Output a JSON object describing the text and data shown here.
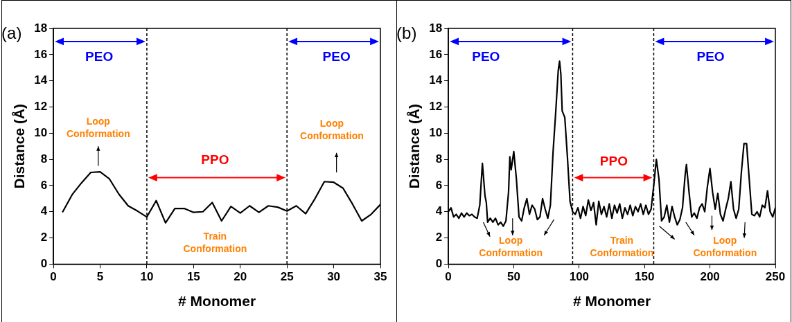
{
  "chart_data": [
    {
      "type": "line",
      "title": "(a)",
      "xlabel": "# Monomer",
      "ylabel": "Distance (Å)",
      "xlim": [
        0,
        35
      ],
      "xticks": [
        0,
        5,
        10,
        15,
        20,
        25,
        30,
        35
      ],
      "ylim": [
        0,
        18
      ],
      "yticks": [
        0,
        2,
        4,
        6,
        8,
        10,
        12,
        14,
        16,
        18
      ],
      "grid": false,
      "legend": false,
      "marker": "none",
      "line_style": "solid",
      "series": [
        {
          "color": "#000000",
          "x": [
            1,
            2,
            3,
            4,
            5,
            6,
            7,
            8,
            9,
            10,
            11,
            12,
            13,
            14,
            15,
            16,
            17,
            18,
            19,
            20,
            21,
            22,
            23,
            24,
            25,
            26,
            27,
            28,
            29,
            30,
            31,
            32,
            33,
            34,
            35
          ],
          "values": [
            4.0,
            5.3,
            6.2,
            7.0,
            7.05,
            6.5,
            5.35,
            4.45,
            4.05,
            3.6,
            4.85,
            3.15,
            4.25,
            4.25,
            3.95,
            4.0,
            4.7,
            3.3,
            4.4,
            3.9,
            4.45,
            3.95,
            4.45,
            4.35,
            4.05,
            4.45,
            3.85,
            5.0,
            6.3,
            6.25,
            5.8,
            4.6,
            3.3,
            3.8,
            4.55
          ]
        }
      ],
      "ref_lines": [
        {
          "axis": "x",
          "value": 10,
          "color": "#000000",
          "line_style": "dashed"
        },
        {
          "axis": "x",
          "value": 25,
          "color": "#000000",
          "line_style": "dashed"
        }
      ],
      "annotations": [
        "PEO",
        "PEO",
        "PPO",
        "Loop Conformation",
        "Loop Conformation",
        "Train Conformation"
      ]
    },
    {
      "type": "line",
      "title": "(b)",
      "xlabel": "# Monomer",
      "ylabel": "Distance (Å)",
      "xlim": [
        0,
        250
      ],
      "xticks": [
        0,
        50,
        100,
        150,
        200,
        250
      ],
      "ylim": [
        0,
        18
      ],
      "yticks": [
        0,
        2,
        4,
        6,
        8,
        10,
        12,
        14,
        16,
        18
      ],
      "grid": false,
      "legend": false,
      "marker": "none",
      "line_style": "solid",
      "series": [
        {
          "color": "#000000",
          "x": [
            0,
            2,
            4,
            6,
            8,
            10,
            12,
            14,
            16,
            18,
            20,
            22,
            24,
            26,
            28,
            29,
            30,
            32,
            34,
            36,
            38,
            40,
            42,
            44,
            46,
            47,
            48,
            50,
            52,
            54,
            56,
            58,
            60,
            62,
            64,
            66,
            68,
            70,
            72,
            74,
            76,
            78,
            80,
            82,
            84,
            85,
            86,
            87,
            89,
            91,
            93,
            95,
            97,
            99,
            101,
            103,
            105,
            107,
            109,
            111,
            113,
            115,
            117,
            119,
            121,
            123,
            125,
            127,
            129,
            131,
            133,
            135,
            137,
            139,
            141,
            143,
            145,
            147,
            149,
            151,
            153,
            155,
            157,
            159,
            161,
            163,
            165,
            167,
            169,
            171,
            173,
            175,
            177,
            179,
            181,
            182,
            184,
            186,
            188,
            190,
            192,
            194,
            196,
            198,
            200,
            202,
            204,
            206,
            208,
            210,
            212,
            214,
            216,
            218,
            220,
            222,
            224,
            226,
            228,
            230,
            232,
            234,
            236,
            238,
            240,
            242,
            244,
            246,
            248,
            250
          ],
          "values": [
            4.0,
            4.3,
            3.6,
            3.8,
            3.5,
            3.9,
            3.6,
            3.9,
            3.7,
            3.8,
            3.6,
            3.5,
            4.5,
            7.7,
            5.2,
            4.7,
            3.2,
            3.5,
            3.2,
            3.5,
            3.0,
            3.2,
            2.9,
            3.3,
            5.5,
            8.2,
            7.2,
            8.6,
            6.5,
            3.6,
            3.3,
            4.3,
            5.0,
            3.8,
            4.5,
            4.2,
            3.4,
            3.6,
            5.0,
            4.2,
            3.5,
            4.5,
            8.5,
            11.5,
            14.8,
            15.5,
            14.5,
            11.7,
            11.2,
            8.2,
            4.8,
            4.0,
            3.8,
            4.3,
            3.5,
            4.4,
            3.7,
            4.9,
            4.1,
            4.7,
            3.0,
            4.8,
            3.8,
            4.4,
            3.6,
            4.6,
            3.5,
            4.5,
            3.9,
            4.6,
            3.5,
            4.3,
            3.8,
            4.5,
            3.7,
            4.4,
            4.0,
            4.6,
            3.8,
            4.5,
            3.8,
            4.2,
            6.0,
            8.0,
            6.5,
            3.3,
            3.6,
            4.5,
            3.2,
            4.4,
            3.6,
            3.0,
            3.4,
            4.3,
            6.8,
            7.6,
            5.5,
            3.6,
            3.9,
            3.5,
            4.3,
            4.6,
            4.0,
            5.9,
            7.3,
            5.5,
            4.2,
            5.4,
            3.8,
            3.3,
            4.2,
            5.0,
            6.3,
            4.2,
            3.5,
            4.2,
            7.0,
            9.2,
            9.2,
            6.5,
            3.8,
            3.7,
            4.0,
            3.6,
            4.5,
            4.3,
            5.6,
            4.0,
            3.6,
            4.3
          ]
        }
      ],
      "ref_lines": [
        {
          "axis": "x",
          "value": 95,
          "color": "#000000",
          "line_style": "dashed"
        },
        {
          "axis": "x",
          "value": 157,
          "color": "#000000",
          "line_style": "dashed"
        }
      ],
      "annotations": [
        "PEO",
        "PEO",
        "PPO",
        "Loop Conformation",
        "Train Conformation",
        "Loop Conformation"
      ]
    }
  ]
}
